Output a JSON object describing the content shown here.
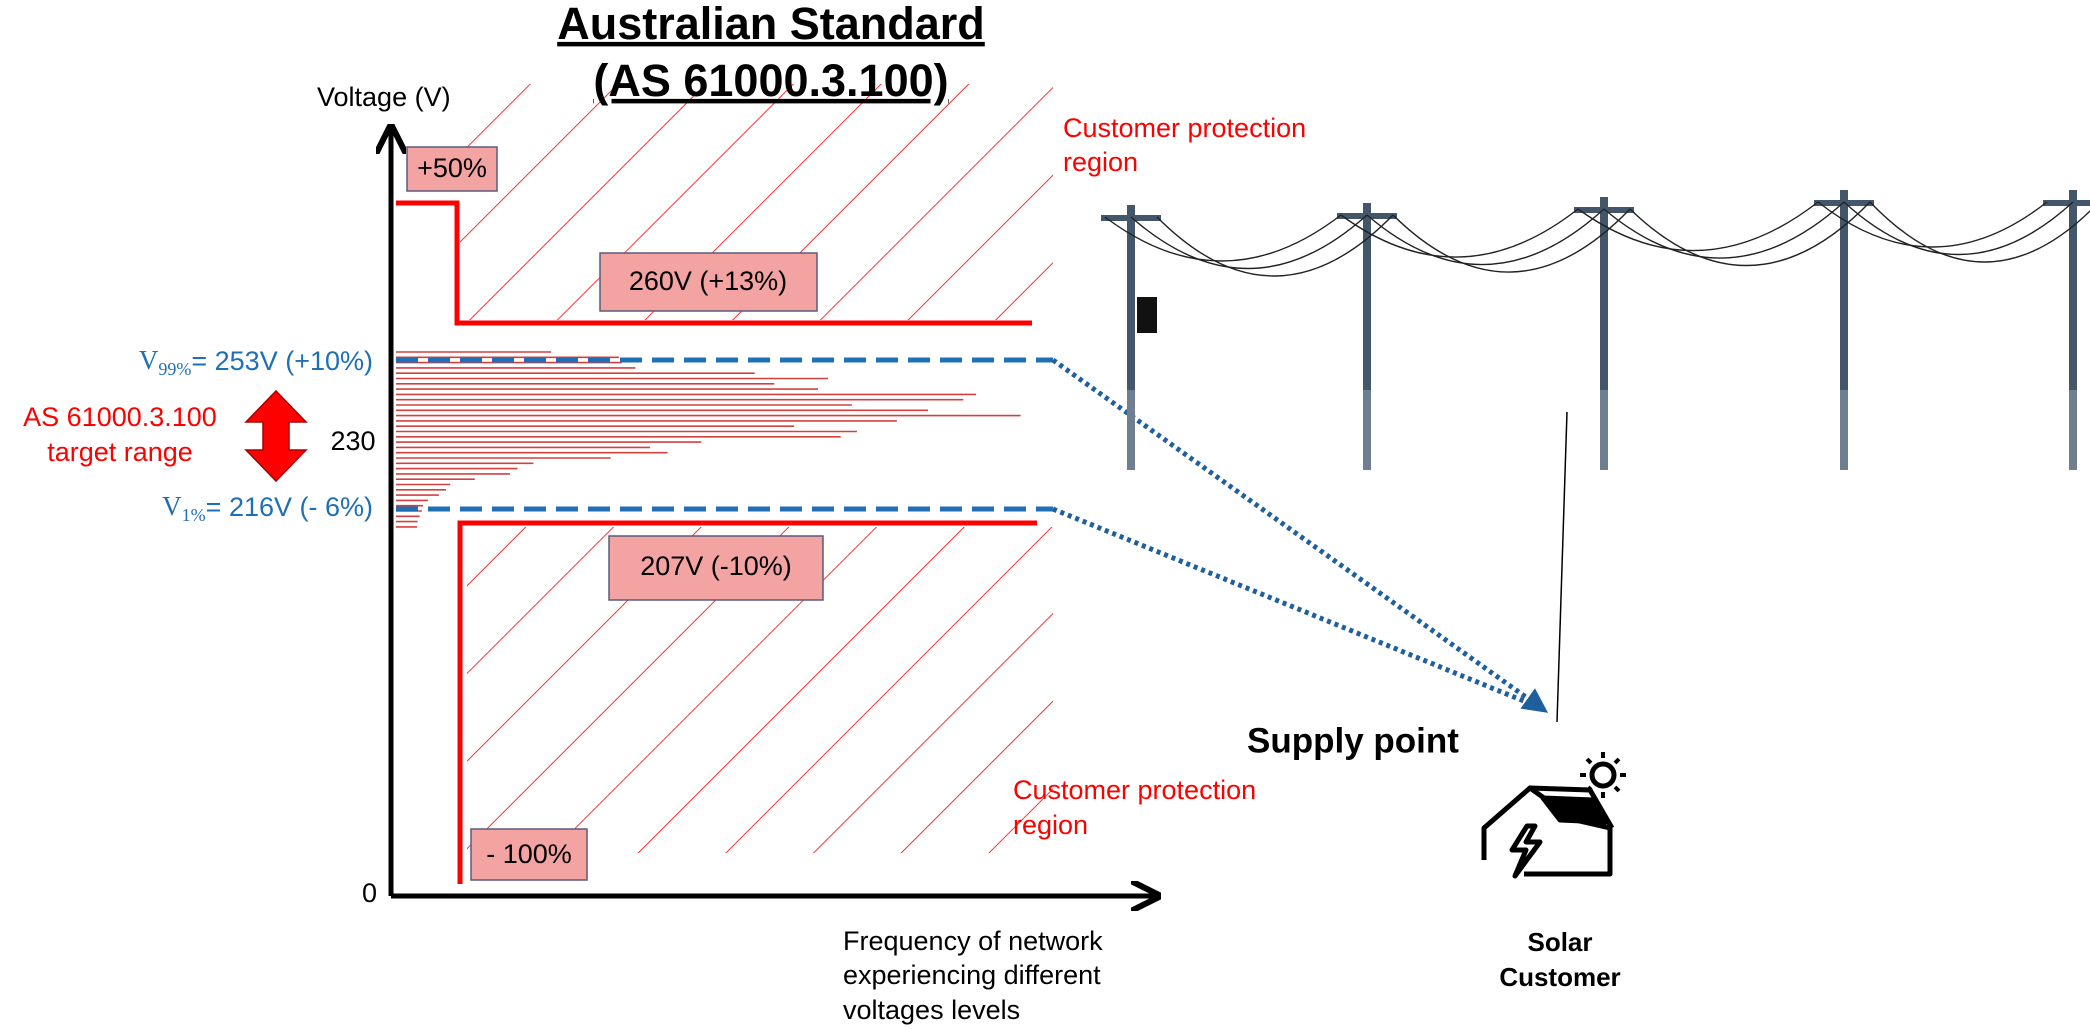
{
  "title": {
    "line1": "Australian Standard",
    "line2": "(AS 61000.3.100)"
  },
  "y_axis_label": "Voltage (V)",
  "x_axis_label": [
    "Frequency of network",
    "experiencing different",
    "voltages levels"
  ],
  "labels": {
    "upper_limit": "+50%",
    "upper_bound": "260V (+13%)",
    "lower_bound": "207V (-10%)",
    "lower_limit": "- 100%",
    "nominal": "230",
    "zero": "0"
  },
  "v99": {
    "symbol": "V",
    "subscript": "99%",
    "text": "= 253V (+10%)"
  },
  "v1": {
    "symbol": "V",
    "subscript": "1%",
    "text": "= 216V (- 6%)"
  },
  "target_range": [
    "AS 61000.3.100",
    "target range"
  ],
  "protection_upper": [
    "Customer protection",
    "region"
  ],
  "protection_lower": [
    "Customer protection",
    "region"
  ],
  "supply_point": "Supply point",
  "solar_customer": [
    "Solar",
    "Customer"
  ]
}
